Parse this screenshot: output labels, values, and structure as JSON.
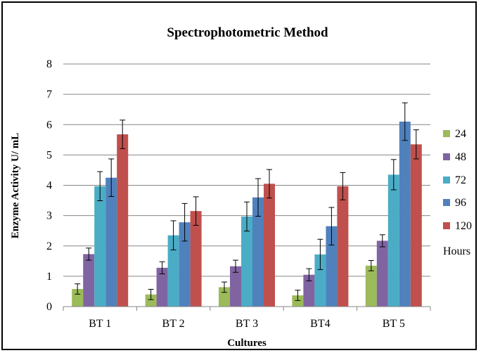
{
  "chart_data": {
    "type": "bar",
    "title": "Spectrophotometric Method",
    "xlabel": "Cultures",
    "ylabel": "Enzyme Activity U/ mL",
    "ylim": [
      0,
      8
    ],
    "yticks": [
      "0",
      "1",
      "2",
      "3",
      "4",
      "5",
      "6",
      "7",
      "8"
    ],
    "categories": [
      "BT 1",
      "BT 2",
      "BT 3",
      "BT4",
      "BT 5"
    ],
    "legend_title": "Hours",
    "legend_position": "right",
    "grid": "horizontal",
    "series": [
      {
        "name": "24",
        "color": "#9bbb59",
        "values": [
          0.58,
          0.4,
          0.64,
          0.37,
          1.35
        ],
        "errors": [
          0.17,
          0.17,
          0.17,
          0.17,
          0.17
        ]
      },
      {
        "name": "48",
        "color": "#8064a2",
        "values": [
          1.73,
          1.28,
          1.33,
          1.05,
          2.17
        ],
        "errors": [
          0.2,
          0.2,
          0.2,
          0.2,
          0.2
        ]
      },
      {
        "name": "72",
        "color": "#4bacc6",
        "values": [
          3.97,
          2.35,
          2.97,
          1.72,
          4.35
        ],
        "errors": [
          0.48,
          0.48,
          0.48,
          0.5,
          0.5
        ]
      },
      {
        "name": "96",
        "color": "#4f81bd",
        "values": [
          4.25,
          2.78,
          3.6,
          2.65,
          6.1
        ],
        "errors": [
          0.62,
          0.62,
          0.62,
          0.62,
          0.62
        ]
      },
      {
        "name": "120",
        "color": "#c0504d",
        "values": [
          5.68,
          3.15,
          4.05,
          3.97,
          5.35
        ],
        "errors": [
          0.47,
          0.47,
          0.47,
          0.45,
          0.48
        ]
      }
    ]
  }
}
